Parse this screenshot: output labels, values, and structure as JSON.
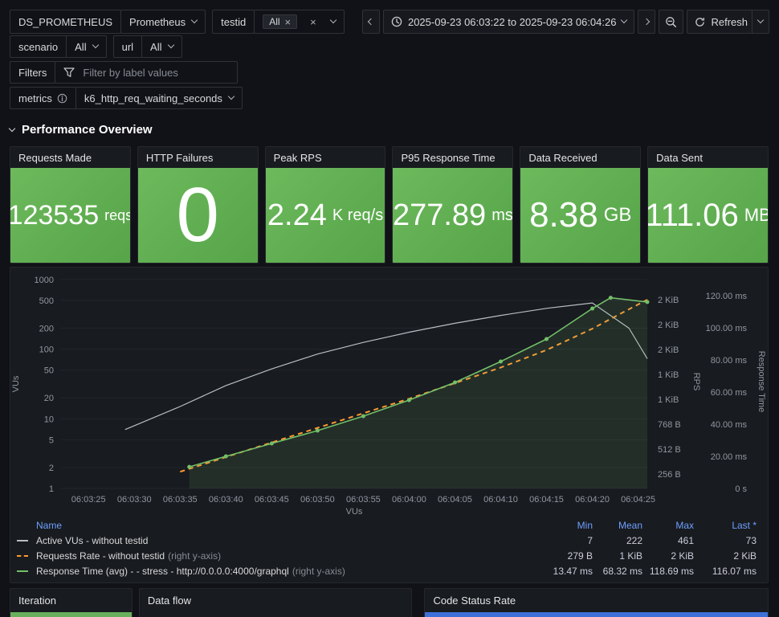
{
  "colors": {
    "stat_green_top": "#6cba5c",
    "stat_green_bottom": "#57a449",
    "series_vus": "#B8BEC6",
    "series_rps": "#FF9830",
    "series_rt": "#73BF69",
    "legend_header": "#6e9fff"
  },
  "toolbar": {
    "datasource_label": "DS_PROMETHEUS",
    "datasource_value": "Prometheus",
    "testid_label": "testid",
    "testid_chip": "All",
    "scenario_label": "scenario",
    "scenario_value": "All",
    "url_label": "url",
    "url_value": "All",
    "filters_label": "Filters",
    "filters_placeholder": "Filter by label values",
    "metrics_label": "metrics",
    "metrics_value": "k6_http_req_waiting_seconds",
    "time_range": "2025-09-23 06:03:22 to 2025-09-23 06:04:26",
    "refresh_label": "Refresh"
  },
  "section": {
    "title": "Performance Overview"
  },
  "stats": [
    {
      "title": "Requests Made",
      "value": "123535",
      "unit": "reqs"
    },
    {
      "title": "HTTP Failures",
      "value": "0",
      "unit": ""
    },
    {
      "title": "Peak RPS",
      "value": "2.24",
      "unit": "K req/s"
    },
    {
      "title": "P95 Response Time",
      "value": "277.89",
      "unit": "ms"
    },
    {
      "title": "Data Received",
      "value": "8.38",
      "unit": "GB"
    },
    {
      "title": "Data Sent",
      "value": "111.06",
      "unit": "MB"
    }
  ],
  "chart_data": {
    "type": "line",
    "x_range": [
      "06:03:22",
      "06:04:26"
    ],
    "x_ticks": [
      "06:03:25",
      "06:03:30",
      "06:03:35",
      "06:03:40",
      "06:03:45",
      "06:03:50",
      "06:03:55",
      "06:04:00",
      "06:04:05",
      "06:04:10",
      "06:04:15",
      "06:04:20",
      "06:04:25"
    ],
    "xlabel": "VUs",
    "left_axis": {
      "label": "VUs",
      "scale": "log",
      "ticks": [
        1,
        2,
        5,
        10,
        20,
        50,
        100,
        200,
        500,
        1000
      ]
    },
    "right_axis_rps": {
      "label": "RPS",
      "ticks": [
        {
          "label": "256 B",
          "value": 256
        },
        {
          "label": "512 B",
          "value": 512
        },
        {
          "label": "768 B",
          "value": 768
        },
        {
          "label": "1 KiB",
          "value": 1024
        },
        {
          "label": "1 KiB",
          "value": 1280
        },
        {
          "label": "2 KiB",
          "value": 1536
        },
        {
          "label": "2 KiB",
          "value": 1792
        },
        {
          "label": "2 KiB",
          "value": 2048
        }
      ]
    },
    "right_axis_rt": {
      "label": "Response Time",
      "ticks": [
        {
          "label": "0 s",
          "value": 0
        },
        {
          "label": "20.00 ms",
          "value": 20
        },
        {
          "label": "40.00 ms",
          "value": 40
        },
        {
          "label": "60.00 ms",
          "value": 60
        },
        {
          "label": "80.00 ms",
          "value": 80
        },
        {
          "label": "100.00 ms",
          "value": 100
        },
        {
          "label": "120.00 ms",
          "value": 120
        }
      ]
    },
    "series": [
      {
        "name": "Active VUs - without testid",
        "axis": "left",
        "color": "#B8BEC6",
        "dash": false,
        "show_points": false,
        "fill": false,
        "width": 1.2,
        "points": [
          [
            "06:03:29",
            7
          ],
          [
            "06:03:35",
            15
          ],
          [
            "06:03:40",
            30
          ],
          [
            "06:03:45",
            52
          ],
          [
            "06:03:50",
            85
          ],
          [
            "06:03:55",
            125
          ],
          [
            "06:04:00",
            175
          ],
          [
            "06:04:05",
            235
          ],
          [
            "06:04:10",
            305
          ],
          [
            "06:04:15",
            385
          ],
          [
            "06:04:20",
            461
          ],
          [
            "06:04:24",
            200
          ],
          [
            "06:04:26",
            73
          ]
        ]
      },
      {
        "name": "Requests Rate - without testid",
        "axis": "rps",
        "color": "#FF9830",
        "dash": true,
        "show_points": false,
        "fill": false,
        "width": 2,
        "points": [
          [
            "06:03:35",
            279
          ],
          [
            "06:03:40",
            430
          ],
          [
            "06:03:45",
            580
          ],
          [
            "06:03:50",
            730
          ],
          [
            "06:03:55",
            880
          ],
          [
            "06:04:00",
            1030
          ],
          [
            "06:04:05",
            1190
          ],
          [
            "06:04:10",
            1350
          ],
          [
            "06:04:15",
            1530
          ],
          [
            "06:04:20",
            1750
          ],
          [
            "06:04:23",
            1900
          ],
          [
            "06:04:26",
            2048
          ]
        ]
      },
      {
        "name": "Response Time (avg) - - stress - http://0.0.0.0:4000/graphql",
        "axis": "rt",
        "color": "#73BF69",
        "dash": false,
        "show_points": true,
        "fill": true,
        "width": 1.6,
        "points": [
          [
            "06:03:36",
            13.47
          ],
          [
            "06:03:40",
            20
          ],
          [
            "06:03:45",
            28
          ],
          [
            "06:03:50",
            36
          ],
          [
            "06:03:55",
            45
          ],
          [
            "06:04:00",
            55
          ],
          [
            "06:04:05",
            66
          ],
          [
            "06:04:10",
            79
          ],
          [
            "06:04:15",
            93
          ],
          [
            "06:04:20",
            112
          ],
          [
            "06:04:22",
            118.69
          ],
          [
            "06:04:26",
            116.07
          ]
        ]
      }
    ]
  },
  "legend": {
    "headers": [
      "Name",
      "Min",
      "Mean",
      "Max",
      "Last *"
    ],
    "rows": [
      {
        "name": "Active VUs - without testid",
        "suffix": "",
        "color": "#B8BEC6",
        "style": "solid",
        "min": "7",
        "mean": "222",
        "max": "461",
        "last": "73"
      },
      {
        "name": "Requests Rate - without testid",
        "suffix": "(right y-axis)",
        "color": "#FF9830",
        "style": "dashed",
        "min": "279 B",
        "mean": "1 KiB",
        "max": "2 KiB",
        "last": "2 KiB"
      },
      {
        "name": "Response Time (avg) - - stress - http://0.0.0.0:4000/graphql",
        "suffix": "(right y-axis)",
        "color": "#73BF69",
        "style": "solid",
        "min": "13.47 ms",
        "mean": "68.32 ms",
        "max": "118.69 ms",
        "last": "116.07 ms"
      }
    ]
  },
  "bottom_panels": [
    {
      "title": "Iteration",
      "bar_color": "#69b05c"
    },
    {
      "title": "Data flow",
      "bar_color": ""
    },
    {
      "title": "Code Status Rate",
      "bar_color": "#3d71d9"
    }
  ]
}
